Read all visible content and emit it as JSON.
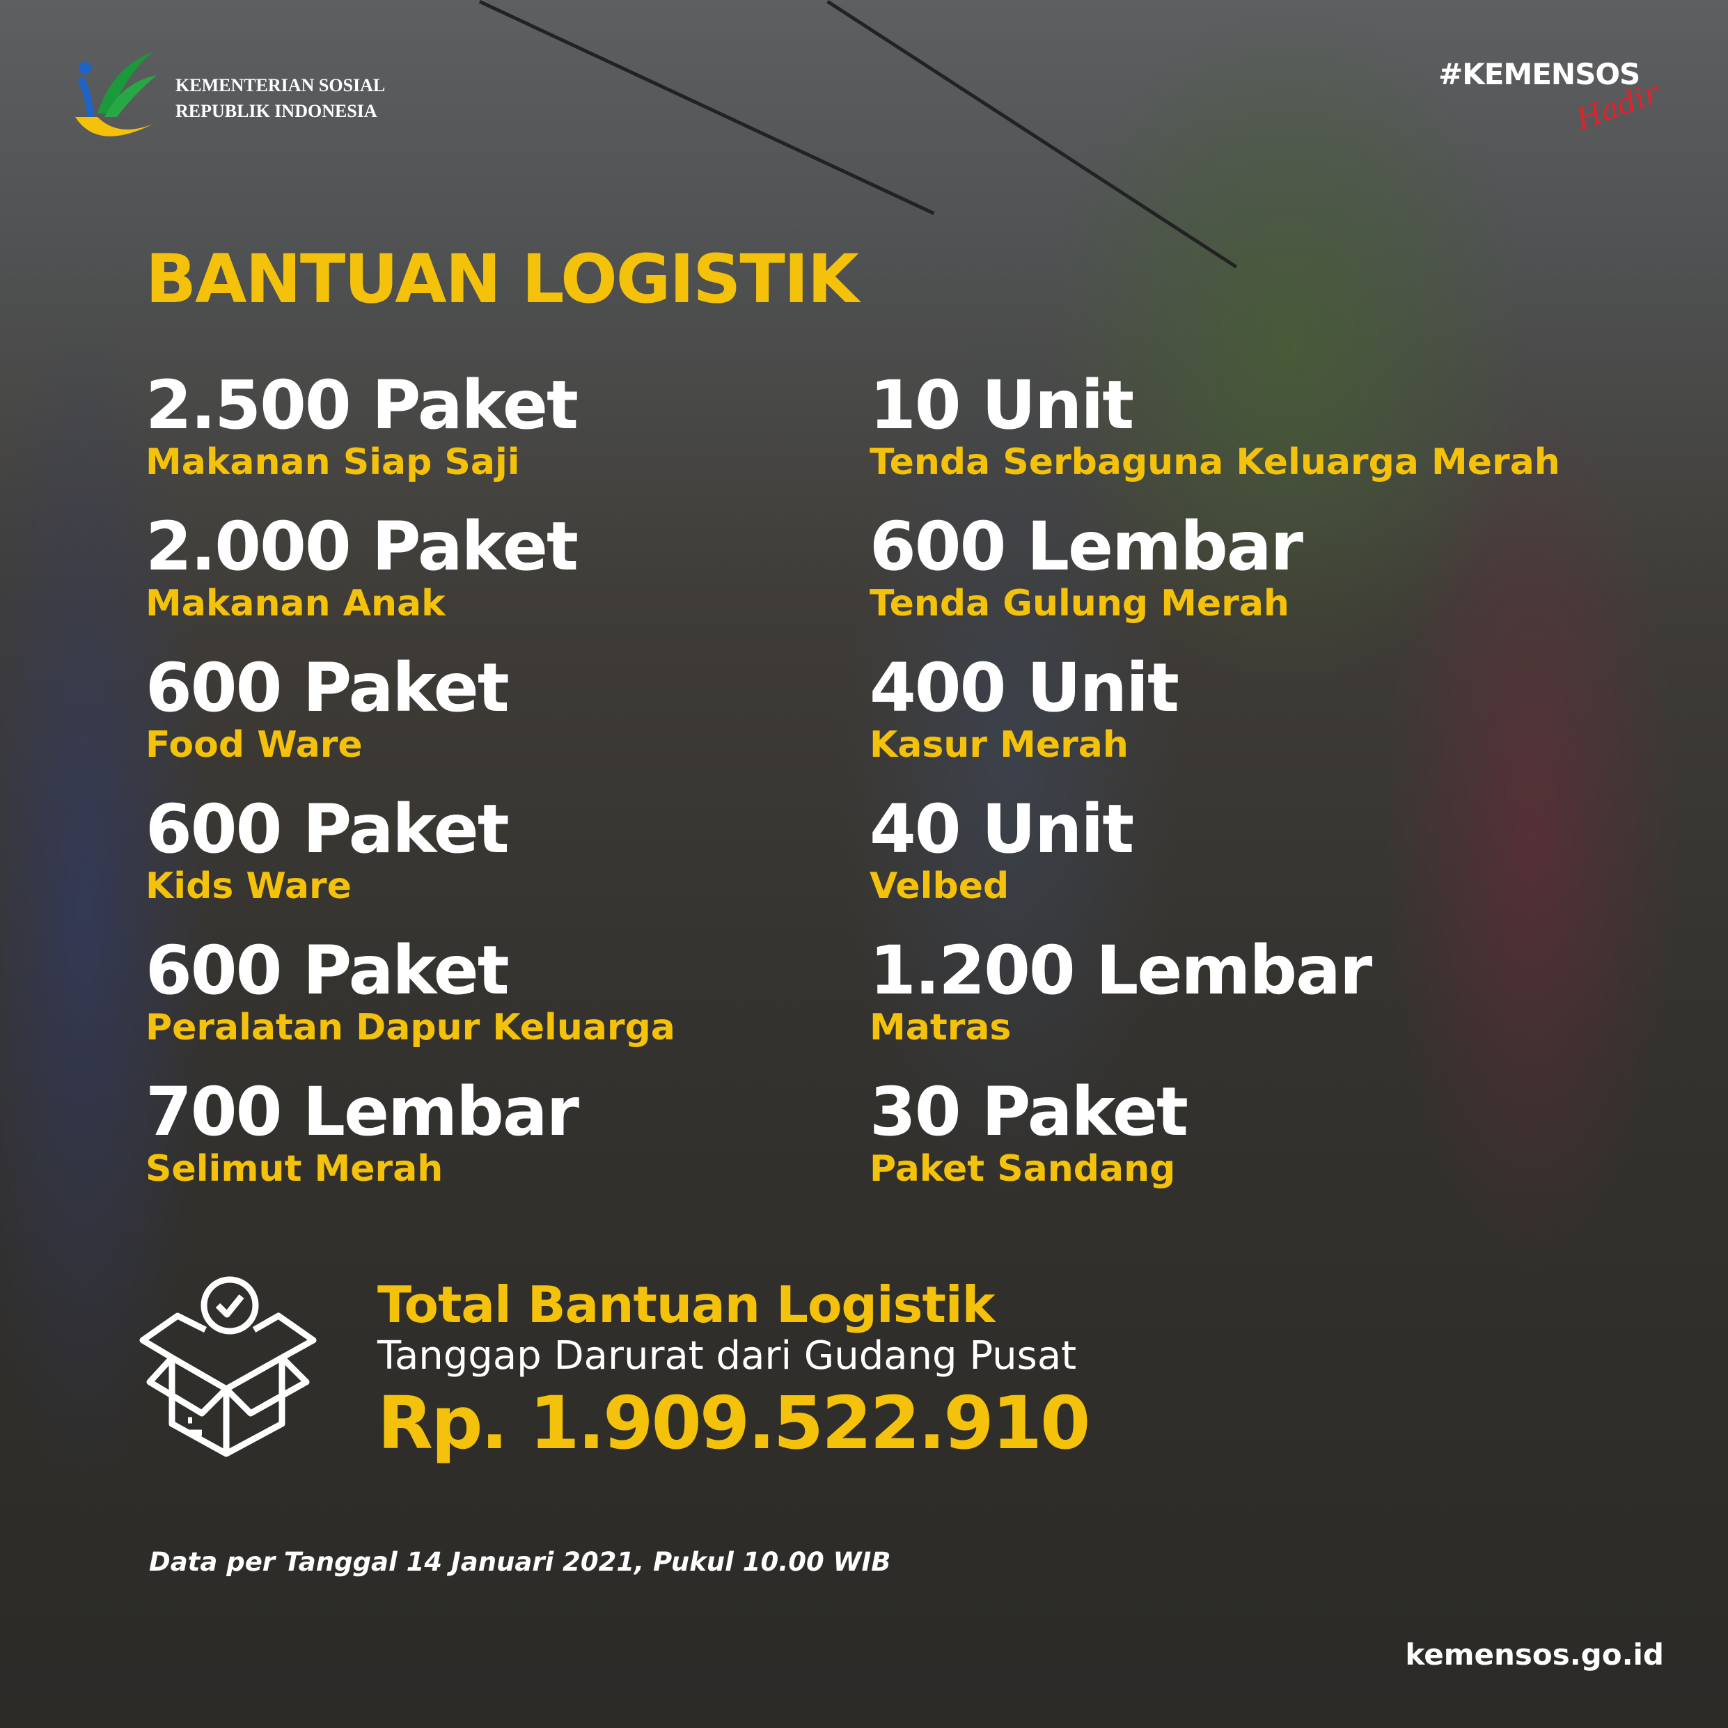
{
  "header": {
    "org_line1": "KEMENTERIAN SOSIAL",
    "org_line2": "REPUBLIK INDONESIA",
    "hashtag": "#KEMENSOS",
    "hashtag_script": "Hadir"
  },
  "title": "BANTUAN LOGISTIK",
  "left_items": [
    {
      "value": "2.500 Paket",
      "label": "Makanan Siap Saji"
    },
    {
      "value": "2.000 Paket",
      "label": "Makanan Anak"
    },
    {
      "value": "600 Paket",
      "label": "Food Ware"
    },
    {
      "value": "600 Paket",
      "label": "Kids Ware"
    },
    {
      "value": "600 Paket",
      "label": "Peralatan Dapur Keluarga"
    },
    {
      "value": "700 Lembar",
      "label": "Selimut Merah"
    }
  ],
  "right_items": [
    {
      "value": "10 Unit",
      "label": "Tenda Serbaguna Keluarga Merah"
    },
    {
      "value": "600 Lembar",
      "label": "Tenda Gulung Merah"
    },
    {
      "value": "400 Unit",
      "label": "Kasur Merah"
    },
    {
      "value": "40 Unit",
      "label": "Velbed"
    },
    {
      "value": "1.200 Lembar",
      "label": "Matras"
    },
    {
      "value": "30 Paket",
      "label": "Paket Sandang"
    }
  ],
  "total": {
    "title": "Total Bantuan Logistik",
    "subtitle": "Tanggap Darurat dari Gudang Pusat",
    "amount": "Rp. 1.909.522.910",
    "icon": "open-box-check-icon"
  },
  "footnote": "Data per Tanggal 14 Januari 2021, Pukul 10.00 WIB",
  "website": "kemensos.go.id",
  "colors": {
    "accent": "#f5c20b",
    "text": "#ffffff",
    "script": "#e3212b"
  }
}
